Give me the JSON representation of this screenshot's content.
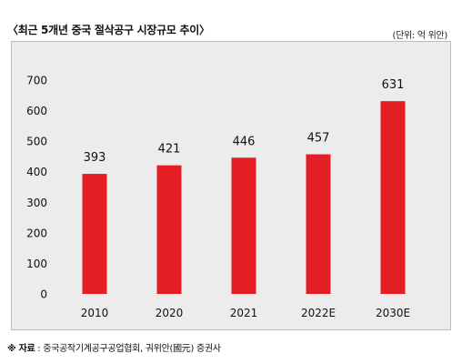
{
  "header": {
    "title": "〈최근 5개년 중국 절삭공구 시장규모 추이〉",
    "unit": "(단위: 억 위안)"
  },
  "footer": {
    "source_label": "※ 자료",
    "source_text": " : 중국공작기계공구공업협회, 궈위안(國元) 증권사"
  },
  "chart_data": {
    "type": "bar",
    "title": "〈최근 5개년 중국 절삭공구 시장규모 추이〉",
    "xlabel": "",
    "ylabel": "",
    "categories": [
      "2010",
      "2020",
      "2021",
      "2022E",
      "2030E"
    ],
    "values": [
      393,
      421,
      446,
      457,
      631
    ],
    "value_labels": [
      "393",
      "421",
      "446",
      "457",
      "631"
    ],
    "yticks": [
      "0",
      "100",
      "200",
      "300",
      "400",
      "500",
      "600",
      "700"
    ],
    "ylim": [
      0,
      700
    ],
    "grid": false,
    "bar_color": "#e31e24",
    "background": "#ececec"
  }
}
